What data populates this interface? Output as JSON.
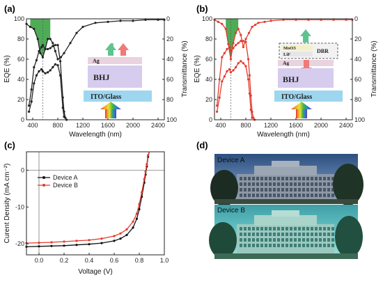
{
  "panels": {
    "a": "(a)",
    "b": "(b)",
    "c": "(c)",
    "d": "(d)"
  },
  "stacks": {
    "a": {
      "layers": [
        "Ag",
        "BHJ",
        "ITO/Glass"
      ]
    },
    "b": {
      "layers": [
        "MoO3",
        "LiF",
        "Ag",
        "BHJ",
        "ITO/Glass"
      ],
      "dbr": "DBR"
    }
  },
  "photos": {
    "device_a_label": "Device A",
    "device_b_label": "Device B"
  },
  "colors": {
    "panel_a_line": "#222222",
    "panel_b_line": "#e23b2e",
    "fill_green": "#2f9e3a",
    "device_a": "#111111",
    "device_b": "#e23b2e"
  },
  "chart_data": [
    {
      "panel": "(a)",
      "type": "line",
      "xlabel": "Wavelength (nm)",
      "ylabel": "EQE (%)",
      "y2label": "Transmittance (%)",
      "xlim": [
        300,
        2500
      ],
      "ylim": [
        0,
        100
      ],
      "y2lim": [
        100,
        0
      ],
      "xticks": [
        400,
        800,
        1200,
        1600,
        2000,
        2400
      ],
      "yticks": [
        0,
        20,
        40,
        60,
        80,
        100
      ],
      "y2ticks": [
        0,
        20,
        40,
        60,
        80,
        100
      ],
      "series": [
        {
          "axis": "left",
          "x": [
            340,
            380,
            420,
            460,
            500,
            540,
            560,
            600,
            640,
            680,
            720,
            760,
            800,
            840,
            880,
            900,
            920,
            940
          ],
          "y": [
            14,
            30,
            52,
            59,
            68,
            72,
            74,
            70,
            70,
            71,
            73,
            74,
            74,
            58,
            22,
            8,
            2,
            0
          ]
        },
        {
          "axis": "left",
          "x": [
            340,
            380,
            420,
            460,
            500,
            540,
            560,
            600,
            640,
            680,
            720,
            760,
            800,
            840,
            880,
            900
          ],
          "y": [
            8,
            18,
            36,
            44,
            48,
            50,
            48,
            46,
            47,
            49,
            52,
            55,
            54,
            44,
            12,
            3
          ]
        },
        {
          "axis": "right",
          "x": [
            300,
            360,
            420,
            480,
            520,
            560,
            600,
            640,
            680,
            720,
            760,
            800,
            850,
            900,
            1000,
            1100,
            1200,
            1400,
            1600,
            1800,
            2000,
            2200,
            2400,
            2500
          ],
          "y": [
            5,
            8,
            10,
            20,
            34,
            38,
            30,
            20,
            20,
            24,
            32,
            40,
            38,
            34,
            24,
            14,
            8,
            4,
            3,
            2,
            2,
            1,
            1,
            1
          ]
        }
      ],
      "fill_region": {
        "x": [
          340,
          680
        ]
      },
      "dashed_x": 560
    },
    {
      "panel": "(b)",
      "type": "line",
      "xlabel": "Wavelength (nm)",
      "ylabel": "EQE (%)",
      "y2label": "Transmittance (%)",
      "xlim": [
        300,
        2500
      ],
      "ylim": [
        0,
        100
      ],
      "y2lim": [
        100,
        0
      ],
      "xticks": [
        400,
        800,
        1200,
        1600,
        2000,
        2400
      ],
      "yticks": [
        0,
        20,
        40,
        60,
        80,
        100
      ],
      "y2ticks": [
        0,
        20,
        40,
        60,
        80,
        100
      ],
      "series": [
        {
          "axis": "left",
          "x": [
            340,
            380,
            420,
            460,
            500,
            540,
            560,
            600,
            640,
            680,
            720,
            760,
            800,
            840,
            860,
            880,
            900,
            920,
            940
          ],
          "y": [
            14,
            40,
            62,
            66,
            70,
            72,
            68,
            71,
            74,
            76,
            78,
            78,
            77,
            60,
            44,
            24,
            8,
            2,
            0
          ]
        },
        {
          "axis": "left",
          "x": [
            340,
            380,
            420,
            460,
            500,
            540,
            560,
            600,
            640,
            680,
            720,
            760,
            800,
            840,
            860,
            880,
            900
          ],
          "y": [
            8,
            22,
            38,
            43,
            48,
            50,
            47,
            49,
            52,
            56,
            58,
            56,
            53,
            40,
            26,
            10,
            2
          ]
        },
        {
          "axis": "right",
          "x": [
            300,
            360,
            420,
            480,
            520,
            560,
            600,
            640,
            680,
            720,
            760,
            800,
            850,
            900,
            950,
            1000,
            1100,
            1200,
            1400,
            1600,
            1800,
            2000,
            2200,
            2400,
            2500
          ],
          "y": [
            1,
            3,
            5,
            10,
            25,
            40,
            24,
            14,
            10,
            16,
            28,
            20,
            14,
            8,
            6,
            4,
            3,
            2,
            1,
            1,
            1,
            1,
            1,
            1,
            1
          ]
        }
      ],
      "fill_region": {
        "x": [
          440,
          700
        ]
      },
      "dashed_x": 560
    },
    {
      "panel": "(c)",
      "type": "line",
      "xlabel": "Voltage (V)",
      "ylabel": "Curent Density (mA cm⁻²)",
      "xlim": [
        -0.1,
        1.0
      ],
      "ylim": [
        -23,
        5
      ],
      "xticks": [
        0.0,
        0.2,
        0.4,
        0.6,
        0.8,
        1.0
      ],
      "yticks": [
        0,
        -10,
        -20
      ],
      "series": [
        {
          "name": "Device A",
          "x": [
            -0.1,
            0.0,
            0.1,
            0.2,
            0.3,
            0.4,
            0.5,
            0.6,
            0.65,
            0.7,
            0.75,
            0.78,
            0.8,
            0.82,
            0.84,
            0.85,
            0.86,
            0.87,
            0.88
          ],
          "y": [
            -20.8,
            -20.7,
            -20.6,
            -20.5,
            -20.3,
            -20.1,
            -19.8,
            -19.2,
            -18.6,
            -17.6,
            -15.6,
            -13.2,
            -10.6,
            -7.2,
            -3.4,
            -1.2,
            1.0,
            3.6,
            6.5
          ]
        },
        {
          "name": "Device B",
          "x": [
            -0.1,
            0.0,
            0.1,
            0.2,
            0.3,
            0.4,
            0.5,
            0.6,
            0.65,
            0.7,
            0.75,
            0.78,
            0.8,
            0.82,
            0.84,
            0.85,
            0.86,
            0.87,
            0.88
          ],
          "y": [
            -19.8,
            -19.7,
            -19.6,
            -19.4,
            -19.2,
            -19.0,
            -18.6,
            -17.9,
            -17.2,
            -16.1,
            -14.0,
            -11.8,
            -9.2,
            -6.0,
            -2.4,
            -0.4,
            1.6,
            4.1,
            6.8
          ]
        }
      ],
      "legend": "top-left",
      "grid": false
    }
  ]
}
